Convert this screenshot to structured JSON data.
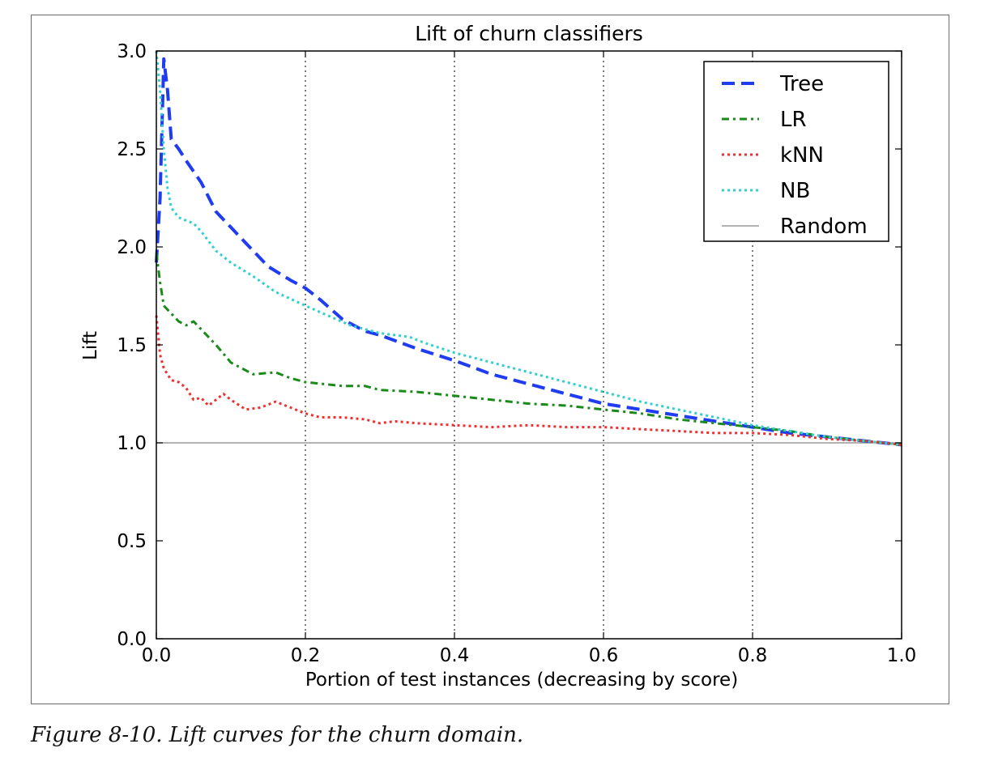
{
  "chart_data": {
    "type": "line",
    "title": "Lift of churn classifiers",
    "xlabel": "Portion of test instances (decreasing by score)",
    "ylabel": "Lift",
    "xlim": [
      0.0,
      1.0
    ],
    "ylim": [
      0.0,
      3.0
    ],
    "xticks": [
      "0.0",
      "0.2",
      "0.4",
      "0.6",
      "0.8",
      "1.0"
    ],
    "yticks": [
      "0.0",
      "0.5",
      "1.0",
      "1.5",
      "2.0",
      "2.5",
      "3.0"
    ],
    "xgrid": true,
    "ygrid": false,
    "legend_position": "top-right",
    "series": [
      {
        "name": "Tree",
        "color": "#1f3cf0",
        "style": "dashed",
        "x": [
          0.0,
          0.005,
          0.01,
          0.015,
          0.02,
          0.03,
          0.04,
          0.06,
          0.08,
          0.1,
          0.12,
          0.15,
          0.18,
          0.2,
          0.22,
          0.25,
          0.28,
          0.3,
          0.35,
          0.4,
          0.45,
          0.5,
          0.55,
          0.6,
          0.65,
          0.7,
          0.75,
          0.8,
          0.85,
          0.9,
          0.95,
          1.0
        ],
        "y": [
          1.92,
          2.25,
          2.96,
          2.8,
          2.55,
          2.5,
          2.44,
          2.33,
          2.18,
          2.1,
          2.02,
          1.9,
          1.83,
          1.79,
          1.73,
          1.63,
          1.57,
          1.55,
          1.48,
          1.42,
          1.35,
          1.3,
          1.25,
          1.2,
          1.17,
          1.14,
          1.11,
          1.08,
          1.05,
          1.03,
          1.01,
          0.99
        ]
      },
      {
        "name": "LR",
        "color": "#1a8a1a",
        "style": "dashdot",
        "x": [
          0.0,
          0.005,
          0.01,
          0.02,
          0.03,
          0.04,
          0.05,
          0.06,
          0.08,
          0.1,
          0.13,
          0.16,
          0.18,
          0.2,
          0.25,
          0.28,
          0.3,
          0.35,
          0.4,
          0.45,
          0.5,
          0.55,
          0.6,
          0.65,
          0.7,
          0.75,
          0.8,
          0.85,
          0.9,
          0.95,
          1.0
        ],
        "y": [
          1.97,
          1.82,
          1.7,
          1.66,
          1.62,
          1.6,
          1.62,
          1.58,
          1.5,
          1.41,
          1.35,
          1.36,
          1.33,
          1.31,
          1.29,
          1.29,
          1.27,
          1.26,
          1.24,
          1.22,
          1.2,
          1.19,
          1.17,
          1.15,
          1.12,
          1.1,
          1.08,
          1.06,
          1.03,
          1.01,
          0.99
        ]
      },
      {
        "name": "kNN",
        "color": "#f03030",
        "style": "dotted",
        "x": [
          0.0,
          0.005,
          0.01,
          0.02,
          0.03,
          0.04,
          0.05,
          0.06,
          0.07,
          0.08,
          0.09,
          0.1,
          0.12,
          0.14,
          0.16,
          0.18,
          0.2,
          0.22,
          0.25,
          0.28,
          0.3,
          0.32,
          0.35,
          0.4,
          0.45,
          0.5,
          0.55,
          0.6,
          0.65,
          0.7,
          0.75,
          0.8,
          0.85,
          0.9,
          0.95,
          1.0
        ],
        "y": [
          1.65,
          1.45,
          1.38,
          1.32,
          1.31,
          1.28,
          1.22,
          1.23,
          1.19,
          1.22,
          1.25,
          1.22,
          1.17,
          1.18,
          1.21,
          1.18,
          1.15,
          1.13,
          1.13,
          1.12,
          1.1,
          1.11,
          1.1,
          1.09,
          1.08,
          1.09,
          1.08,
          1.08,
          1.07,
          1.06,
          1.05,
          1.05,
          1.04,
          1.02,
          1.01,
          0.99
        ]
      },
      {
        "name": "NB",
        "color": "#30d0d0",
        "style": "dotted",
        "x": [
          0.0,
          0.005,
          0.01,
          0.015,
          0.02,
          0.03,
          0.05,
          0.06,
          0.08,
          0.1,
          0.13,
          0.16,
          0.2,
          0.23,
          0.26,
          0.3,
          0.34,
          0.36,
          0.4,
          0.45,
          0.5,
          0.55,
          0.6,
          0.65,
          0.7,
          0.75,
          0.8,
          0.85,
          0.9,
          0.95,
          1.0
        ],
        "y": [
          3.0,
          2.8,
          2.5,
          2.3,
          2.2,
          2.15,
          2.12,
          2.08,
          1.98,
          1.92,
          1.85,
          1.77,
          1.7,
          1.65,
          1.6,
          1.56,
          1.54,
          1.51,
          1.46,
          1.41,
          1.36,
          1.31,
          1.26,
          1.21,
          1.17,
          1.13,
          1.09,
          1.06,
          1.03,
          1.01,
          0.99
        ]
      },
      {
        "name": "Random",
        "color": "#999999",
        "style": "solid",
        "x": [
          0.0,
          1.0
        ],
        "y": [
          1.0,
          1.0
        ]
      }
    ]
  },
  "caption": "Figure 8-10. Lift curves for the churn domain."
}
